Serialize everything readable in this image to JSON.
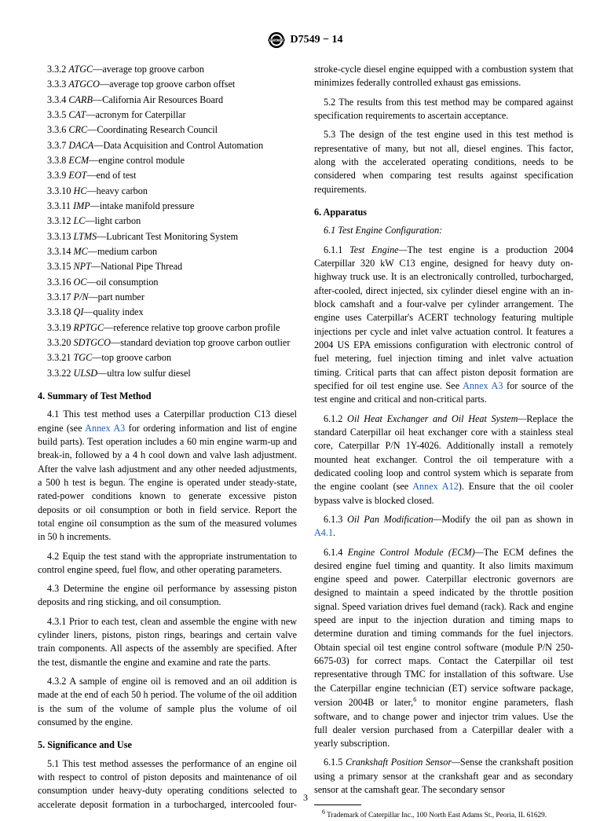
{
  "header": {
    "designation": "D7549 − 14"
  },
  "defs": [
    {
      "n": "3.3.2",
      "term": "ATGC",
      "desc": "—average top groove carbon"
    },
    {
      "n": "3.3.3",
      "term": "ATGCO",
      "desc": "—average top groove carbon offset"
    },
    {
      "n": "3.3.4",
      "term": "CARB",
      "desc": "—California Air Resources Board"
    },
    {
      "n": "3.3.5",
      "term": "CAT",
      "desc": "—acronym for Caterpillar"
    },
    {
      "n": "3.3.6",
      "term": "CRC",
      "desc": "—Coordinating Research Council"
    },
    {
      "n": "3.3.7",
      "term": "DACA",
      "desc": "—Data Acquisition and Control Automation"
    },
    {
      "n": "3.3.8",
      "term": "ECM",
      "desc": "—engine control module"
    },
    {
      "n": "3.3.9",
      "term": "EOT",
      "desc": "—end of test"
    },
    {
      "n": "3.3.10",
      "term": "HC",
      "desc": "—heavy carbon"
    },
    {
      "n": "3.3.11",
      "term": "IMP",
      "desc": "—intake manifold pressure"
    },
    {
      "n": "3.3.12",
      "term": "LC",
      "desc": "—light carbon"
    },
    {
      "n": "3.3.13",
      "term": "LTMS",
      "desc": "—Lubricant Test Monitoring System"
    },
    {
      "n": "3.3.14",
      "term": "MC",
      "desc": "—medium carbon"
    },
    {
      "n": "3.3.15",
      "term": "NPT",
      "desc": "—National Pipe Thread"
    },
    {
      "n": "3.3.16",
      "term": "OC",
      "desc": "—oil consumption"
    },
    {
      "n": "3.3.17",
      "term": "P/N",
      "desc": "—part number"
    },
    {
      "n": "3.3.18",
      "term": "QI",
      "desc": "—quality index"
    },
    {
      "n": "3.3.19",
      "term": "RPTGC",
      "desc": "—reference relative top groove carbon profile"
    },
    {
      "n": "3.3.20",
      "term": "SDTGCO",
      "desc": "—standard deviation top groove carbon outlier"
    },
    {
      "n": "3.3.21",
      "term": "TGC",
      "desc": "—top groove carbon"
    },
    {
      "n": "3.3.22",
      "term": "ULSD",
      "desc": "—ultra low sulfur diesel"
    }
  ],
  "s4": {
    "title": "4. Summary of Test Method",
    "p1a": "4.1 This test method uses a Caterpillar production C13 diesel engine (see ",
    "p1link": "Annex A3",
    "p1b": " for ordering information and list of engine build parts). Test operation includes a 60 min engine warm-up and break-in, followed by a 4 h cool down and valve lash adjustment. After the valve lash adjustment and any other needed adjustments, a 500 h test is begun. The engine is operated under steady-state, rated-power conditions known to generate excessive piston deposits or oil consumption or both in field service. Report the total engine oil consumption as the sum of the measured volumes in 50 h increments.",
    "p2": "4.2 Equip the test stand with the appropriate instrumentation to control engine speed, fuel flow, and other operating parameters.",
    "p3": "4.3 Determine the engine oil performance by assessing piston deposits and ring sticking, and oil consumption.",
    "p31": "4.3.1 Prior to each test, clean and assemble the engine with new cylinder liners, pistons, piston rings, bearings and certain valve train components. All aspects of the assembly are specified. After the test, dismantle the engine and examine and rate the parts.",
    "p32": "4.3.2 A sample of engine oil is removed and an oil addition is made at the end of each 50 h period. The volume of the oil addition is the sum of the volume of sample plus the volume of oil consumed by the engine."
  },
  "s5": {
    "title": "5. Significance and Use",
    "p1": "5.1 This test method assesses the performance of an engine oil with respect to control of piston deposits and maintenance of oil consumption under heavy-duty operating conditions selected to accelerate deposit formation in a turbocharged, intercooled four-stroke-cycle diesel engine equipped with a combustion system that minimizes federally controlled exhaust gas emissions.",
    "p2": "5.2 The results from this test method may be compared against specification requirements to ascertain acceptance.",
    "p3": "5.3 The design of the test engine used in this test method is representative of many, but not all, diesel engines. This factor, along with the accelerated operating conditions, needs to be considered when comparing test results against specification requirements."
  },
  "s6": {
    "title": "6. Apparatus",
    "sub": "6.1 Test Engine Configuration:",
    "p611a": "6.1.1 ",
    "p611t": "Test Engine—",
    "p611b": "The test engine is a production 2004 Caterpillar 320 kW C13 engine, designed for heavy duty on-highway truck use. It is an electronically controlled, turbocharged, after-cooled, direct injected, six cylinder diesel engine with an in-block camshaft and a four-valve per cylinder arrangement. The engine uses Caterpillar's ACERT technology featuring multiple injections per cycle and inlet valve actuation control. It features a 2004 US EPA emissions configuration with electronic control of fuel metering, fuel injection timing and inlet valve actuation timing. Critical parts that can affect piston deposit formation are specified for oil test engine use. See ",
    "p611link": "Annex A3",
    "p611c": " for source of the test engine and critical and non-critical parts.",
    "p612a": "6.1.2 ",
    "p612t": "Oil Heat Exchanger and Oil Heat System—",
    "p612b": "Replace the standard Caterpillar oil heat exchanger core with a stainless steal core, Caterpillar P/N 1Y-4026. Additionally install a remotely mounted heat exchanger. Control the oil temperature with a dedicated cooling loop and control system which is separate from the engine coolant (see ",
    "p612link": "Annex A12",
    "p612c": "). Ensure that the oil cooler bypass valve is blocked closed.",
    "p613a": "6.1.3 ",
    "p613t": "Oil Pan Modification—",
    "p613b": "Modify the oil pan as shown in ",
    "p613link": "A4.1",
    "p613c": ".",
    "p614a": "6.1.4 ",
    "p614t": "Engine Control Module (ECM)—",
    "p614b": "The ECM defines the desired engine fuel timing and quantity. It also limits maximum engine speed and power. Caterpillar electronic governors are designed to maintain a speed indicated by the throttle position signal. Speed variation drives fuel demand (rack). Rack and engine speed are input to the injection duration and timing maps to determine duration and timing commands for the fuel injectors. Obtain special oil test engine control software (module P/N 250-6675-03) for correct maps. Contact the Caterpillar oil test representative through TMC for installation of this software. Use the Caterpillar engine technician (ET) service software package, version 2004B or later,",
    "p614sup": "6",
    "p614c": " to monitor engine parameters, flash software, and to change power and injector trim values. Use the full dealer version purchased from a Caterpillar dealer with a yearly subscription.",
    "p615a": "6.1.5 ",
    "p615t": "Crankshaft Position Sensor—",
    "p615b": "Sense the crankshaft position using a primary sensor at the crankshaft gear and as secondary sensor at the camshaft gear. The secondary sensor"
  },
  "footnote": {
    "sup": "6",
    "text": " Trademark of Caterpillar Inc., 100 North East Adams St., Peoria, IL 61629."
  },
  "pageNumber": "3"
}
